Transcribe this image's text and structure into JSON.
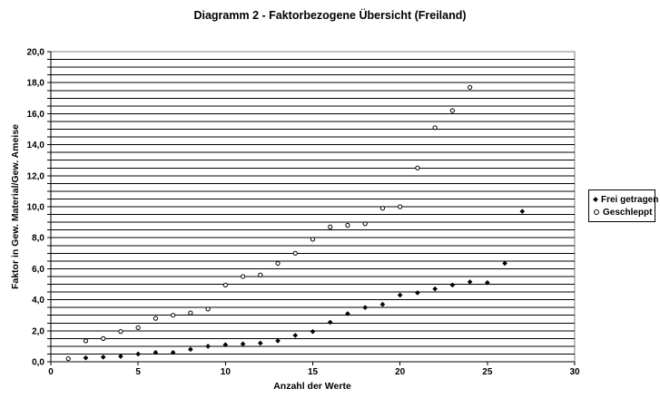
{
  "title": "Diagramm 2 - Faktorbezogene Übersicht (Freiland)",
  "chart_data": {
    "type": "scatter",
    "title": "Diagramm 2 - Faktorbezogene Übersicht (Freiland)",
    "xlabel": "Anzahl der Werte",
    "ylabel": "Faktor in Gew. Material/Gew. Ameise",
    "xlim": [
      0,
      30
    ],
    "ylim": [
      0,
      20
    ],
    "x_tick_step": 5,
    "y_grid_step": 0.5,
    "y_label_step": 2,
    "y_tick_decimals": 1,
    "decimal_separator": ",",
    "grid": true,
    "legend_position": "right",
    "colors": {
      "marker": "#000000",
      "gridline": "#000000",
      "axis": "#000000",
      "plot_border": "#848284",
      "background": "#ffffff"
    },
    "series": [
      {
        "name": "Frei getragen",
        "marker": "filled-diamond",
        "points": [
          [
            2,
            0.25
          ],
          [
            3,
            0.3
          ],
          [
            4,
            0.35
          ],
          [
            5,
            0.5
          ],
          [
            6,
            0.6
          ],
          [
            7,
            0.6
          ],
          [
            8,
            0.8
          ],
          [
            9,
            1.0
          ],
          [
            10,
            1.1
          ],
          [
            11,
            1.15
          ],
          [
            12,
            1.2
          ],
          [
            13,
            1.35
          ],
          [
            14,
            1.7
          ],
          [
            15,
            1.95
          ],
          [
            16,
            2.55
          ],
          [
            17,
            3.1
          ],
          [
            18,
            3.5
          ],
          [
            19,
            3.7
          ],
          [
            20,
            4.3
          ],
          [
            21,
            4.45
          ],
          [
            22,
            4.7
          ],
          [
            23,
            4.95
          ],
          [
            24,
            5.15
          ],
          [
            25,
            5.1
          ],
          [
            26,
            6.35
          ],
          [
            27,
            9.7
          ]
        ]
      },
      {
        "name": "Geschleppt",
        "marker": "open-circle",
        "points": [
          [
            1,
            0.2
          ],
          [
            2,
            1.35
          ],
          [
            3,
            1.5
          ],
          [
            4,
            1.95
          ],
          [
            5,
            2.2
          ],
          [
            6,
            2.8
          ],
          [
            7,
            3.0
          ],
          [
            8,
            3.15
          ],
          [
            9,
            3.4
          ],
          [
            10,
            4.95
          ],
          [
            11,
            5.5
          ],
          [
            12,
            5.6
          ],
          [
            13,
            6.35
          ],
          [
            14,
            7.0
          ],
          [
            15,
            7.9
          ],
          [
            16,
            8.7
          ],
          [
            17,
            8.8
          ],
          [
            18,
            8.9
          ],
          [
            19,
            9.9
          ],
          [
            20,
            10.0
          ],
          [
            21,
            12.5
          ],
          [
            22,
            15.1
          ],
          [
            23,
            16.2
          ],
          [
            24,
            17.7
          ]
        ]
      }
    ]
  }
}
